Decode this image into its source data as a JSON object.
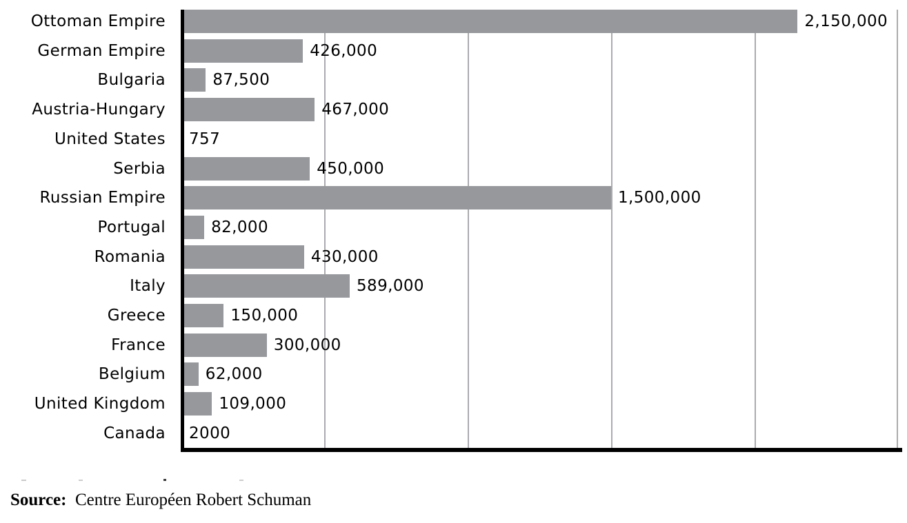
{
  "chart_data": {
    "type": "bar",
    "orientation": "horizontal",
    "title": "",
    "xlabel": "",
    "ylabel": "",
    "categories": [
      "Ottoman Empire",
      "German Empire",
      "Bulgaria",
      "Austria-Hungary",
      "United States",
      "Serbia",
      "Russian Empire",
      "Portugal",
      "Romania",
      "Italy",
      "Greece",
      "France",
      "Belgium",
      "United Kingdom",
      "Canada"
    ],
    "values": [
      2150000,
      426000,
      87500,
      467000,
      757,
      450000,
      1500000,
      82000,
      430000,
      589000,
      150000,
      300000,
      62000,
      109000,
      2000
    ],
    "value_labels": [
      "2,150,000",
      "426,000",
      "87,500",
      "467,000",
      "757",
      "450,000",
      "1,500,000",
      "82,000",
      "430,000",
      "589,000",
      "150,000",
      "300,000",
      "62,000",
      "109,000",
      "2000"
    ],
    "xlim": [
      0,
      2500000
    ],
    "gridlines_x": [
      500000,
      1000000,
      1500000,
      2000000,
      2500000
    ],
    "grid": true,
    "legend": "none",
    "bar_color": "#96989C",
    "gridline_color": "#ABABAE",
    "axis_color": "#000000",
    "text_color": "#000000"
  },
  "source": {
    "label": "Source:",
    "separator": "  ",
    "text": "Centre Européen Robert Schuman"
  }
}
